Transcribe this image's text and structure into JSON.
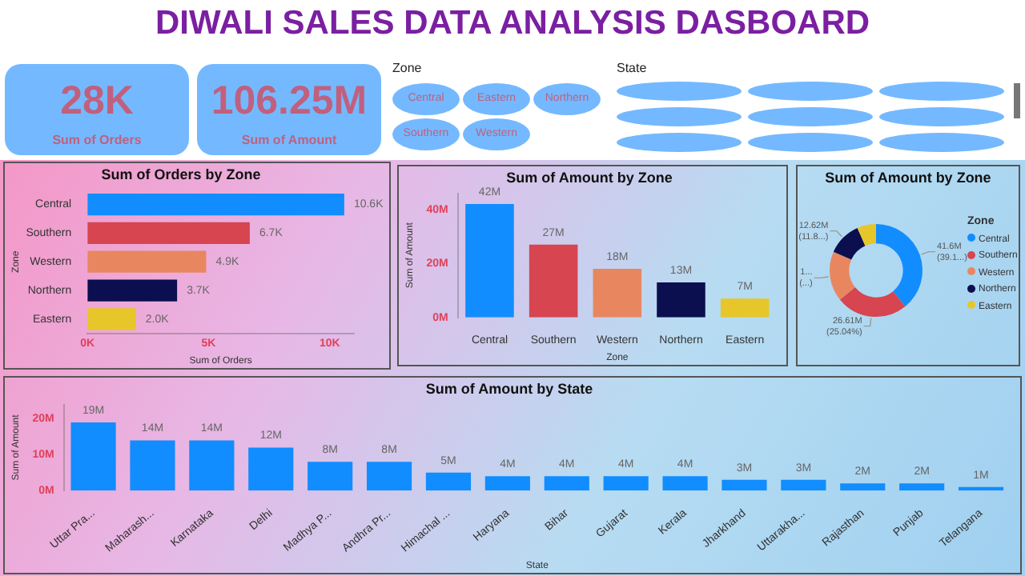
{
  "chart_data": [
    {
      "type": "other",
      "title": "DIWALI SALES DATA ANALYSIS DASBOARD",
      "annotations": [
        "28K",
        "Sum of Orders",
        "106.25M",
        "Sum of Amount"
      ]
    },
    {
      "type": "other",
      "title": "Zone",
      "annotations": [
        "Central",
        "Eastern",
        "Northern",
        "Southern",
        "Western"
      ]
    },
    {
      "type": "other",
      "title": "State"
    },
    {
      "type": "bar",
      "orientation": "horizontal",
      "title": "Sum of Orders by Zone",
      "xlabel": "Sum of Orders",
      "ylabel": "Zone",
      "categories": [
        "Central",
        "Southern",
        "Western",
        "Northern",
        "Eastern"
      ],
      "values": [
        10.6,
        6.7,
        4.9,
        3.7,
        2.0
      ],
      "colors": [
        "#118dff",
        "#d64550",
        "#e8875f",
        "#0b0f4f",
        "#e6c629"
      ],
      "value_labels": [
        "10.6K",
        "6.7K",
        "4.9K",
        "3.7K",
        "2.0K"
      ],
      "xlim": [
        0,
        11
      ],
      "xticks": [
        {
          "value": 0,
          "label": "0K"
        },
        {
          "value": 5,
          "label": "5K"
        },
        {
          "value": 10,
          "label": "10K"
        }
      ]
    },
    {
      "type": "bar",
      "title": "Sum of Amount by Zone",
      "xlabel": "Zone",
      "ylabel": "Sum of Amount",
      "categories": [
        "Central",
        "Southern",
        "Western",
        "Northern",
        "Eastern"
      ],
      "values": [
        42,
        27,
        18,
        13,
        7
      ],
      "colors": [
        "#118dff",
        "#d64550",
        "#e8875f",
        "#0b0f4f",
        "#e6c629"
      ],
      "value_labels": [
        "42M",
        "27M",
        "18M",
        "13M",
        "7M"
      ],
      "ylim": [
        0,
        46
      ],
      "yticks": [
        {
          "value": 0,
          "label": "0M"
        },
        {
          "value": 20,
          "label": "20M"
        },
        {
          "value": 40,
          "label": "40M"
        }
      ]
    },
    {
      "type": "donut",
      "title": "Sum of Amount by Zone",
      "legend_title": "Zone",
      "legend": "right",
      "categories": [
        "Central",
        "Southern",
        "Western",
        "Northern",
        "Eastern"
      ],
      "values": [
        41.6,
        26.61,
        18.42,
        12.62,
        7.0
      ],
      "colors": [
        "#118dff",
        "#d64550",
        "#e8875f",
        "#0b0f4f",
        "#e6c629"
      ],
      "value_labels": [
        "41.6M",
        "26.61M",
        "1...",
        "12.62M",
        null
      ],
      "annotations": [
        {
          "text": "(39.1...)",
          "x": "Central"
        },
        {
          "text": "(25.04%)",
          "x": "Southern"
        },
        {
          "text": "(...)",
          "x": "Western"
        },
        {
          "text": "(11.8...)",
          "x": "Northern"
        }
      ]
    },
    {
      "type": "bar",
      "title": "Sum of Amount by State",
      "xlabel": "State",
      "ylabel": "Sum of Amount",
      "categories": [
        "Uttar Pra...",
        "Maharash...",
        "Karnataka",
        "Delhi",
        "Madhya P...",
        "Andhra Pr...",
        "Himachal ...",
        "Haryana",
        "Bihar",
        "Gujarat",
        "Kerala",
        "Jharkhand",
        "Uttarakha...",
        "Rajasthan",
        "Punjab",
        "Telangana"
      ],
      "values": [
        19,
        14,
        14,
        12,
        8,
        8,
        5,
        4,
        4,
        4,
        4,
        3,
        3,
        2,
        2,
        1
      ],
      "color": "#118dff",
      "value_labels": [
        "19M",
        "14M",
        "14M",
        "12M",
        "8M",
        "8M",
        "5M",
        "4M",
        "4M",
        "4M",
        "4M",
        "3M",
        "3M",
        "2M",
        "2M",
        "1M"
      ],
      "ylim": [
        0,
        24
      ],
      "yticks": [
        {
          "value": 0,
          "label": "0M"
        },
        {
          "value": 10,
          "label": "10M"
        },
        {
          "value": 20,
          "label": "20M"
        }
      ]
    }
  ]
}
